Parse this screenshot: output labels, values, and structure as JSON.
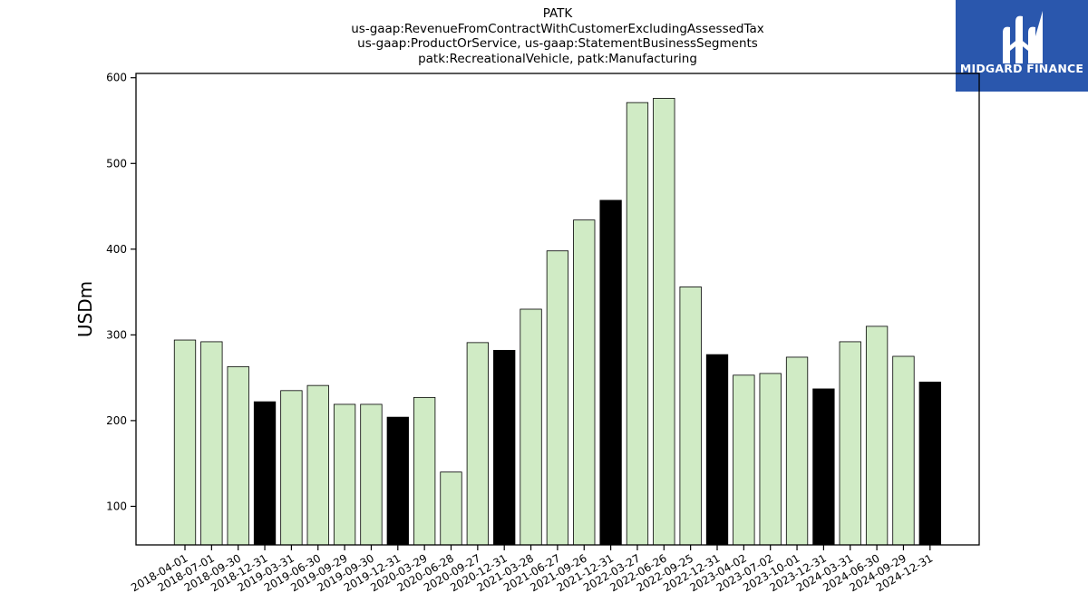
{
  "header": {
    "title_lines": [
      "PATK",
      "us-gaap:RevenueFromContractWithCustomerExcludingAssessedTax",
      "us-gaap:ProductOrService, us-gaap:StatementBusinessSegments",
      "patk:RecreationalVehicle, patk:Manufacturing"
    ]
  },
  "logo": {
    "text": "MIDGARD FINANCE",
    "icon": "midgard-logo-icon",
    "color": "#2a57ad"
  },
  "chart_data": {
    "type": "bar",
    "title": "PATK",
    "xlabel": "",
    "ylabel": "USDm",
    "ylim": [
      55,
      605
    ],
    "yticks": [
      100,
      200,
      300,
      400,
      500,
      600
    ],
    "grid": false,
    "colors": {
      "quarter": "#d0ebc5",
      "year_end": "#000000",
      "edge": "#000000"
    },
    "categories": [
      "2018-04-01",
      "2018-07-01",
      "2018-09-30",
      "2018-12-31",
      "2019-03-31",
      "2019-06-30",
      "2019-09-29",
      "2019-09-30",
      "2019-12-31",
      "2020-03-29",
      "2020-06-28",
      "2020-09-27",
      "2020-12-31",
      "2021-03-28",
      "2021-06-27",
      "2021-09-26",
      "2021-12-31",
      "2022-03-27",
      "2022-06-26",
      "2022-09-25",
      "2022-12-31",
      "2023-04-02",
      "2023-07-02",
      "2023-10-01",
      "2023-12-31",
      "2024-03-31",
      "2024-06-30",
      "2024-09-29",
      "2024-12-31"
    ],
    "values": [
      294,
      292,
      263,
      222,
      235,
      241,
      219,
      219,
      204,
      227,
      140,
      291,
      282,
      330,
      398,
      434,
      457,
      571,
      576,
      356,
      277,
      253,
      255,
      274,
      237,
      292,
      310,
      275,
      245
    ],
    "highlight": [
      false,
      false,
      false,
      true,
      false,
      false,
      false,
      false,
      true,
      false,
      false,
      false,
      true,
      false,
      false,
      false,
      true,
      false,
      false,
      false,
      true,
      false,
      false,
      false,
      true,
      false,
      false,
      false,
      true
    ]
  }
}
